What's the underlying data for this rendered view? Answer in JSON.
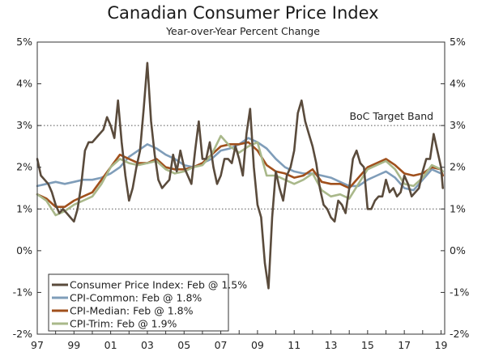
{
  "chart_data": {
    "type": "line",
    "title": "Canadian Consumer Price Index",
    "subtitle": "Year-over-Year Percent Change",
    "xlabel": "",
    "ylabel": "",
    "xlim": [
      1997.0,
      2019.2
    ],
    "ylim": [
      -2,
      5
    ],
    "y_ticks": [
      -2,
      -1,
      0,
      1,
      2,
      3,
      4,
      5
    ],
    "y_tick_labels": [
      "-2%",
      "-1%",
      "0%",
      "1%",
      "2%",
      "3%",
      "4%",
      "5%"
    ],
    "x_ticks": [
      1997,
      1999,
      2001,
      2003,
      2005,
      2007,
      2009,
      2011,
      2013,
      2015,
      2017,
      2019
    ],
    "x_tick_labels": [
      "97",
      "99",
      "01",
      "03",
      "05",
      "07",
      "09",
      "11",
      "13",
      "15",
      "17",
      "19"
    ],
    "grid": "dotted horizontal lines at 1% and 3%",
    "annotation": {
      "text": "BoC Target Band",
      "x": 2016.3,
      "y": 3
    },
    "legend_position": "bottom-left",
    "series": [
      {
        "name": "Consumer Price Index: Feb @ 1.5%",
        "color": "#5a4b3c",
        "x": [
          1997.0,
          1997.2,
          1997.4,
          1997.6,
          1997.8,
          1998.0,
          1998.2,
          1998.4,
          1998.6,
          1998.8,
          1999.0,
          1999.2,
          1999.4,
          1999.6,
          1999.8,
          2000.0,
          2000.2,
          2000.4,
          2000.6,
          2000.8,
          2001.0,
          2001.2,
          2001.4,
          2001.6,
          2001.8,
          2002.0,
          2002.2,
          2002.4,
          2002.6,
          2002.8,
          2003.0,
          2003.2,
          2003.4,
          2003.6,
          2003.8,
          2004.0,
          2004.2,
          2004.4,
          2004.6,
          2004.8,
          2005.0,
          2005.2,
          2005.4,
          2005.6,
          2005.8,
          2006.0,
          2006.2,
          2006.4,
          2006.6,
          2006.8,
          2007.0,
          2007.2,
          2007.4,
          2007.6,
          2007.8,
          2008.0,
          2008.2,
          2008.4,
          2008.6,
          2008.8,
          2009.0,
          2009.2,
          2009.4,
          2009.6,
          2009.8,
          2010.0,
          2010.2,
          2010.4,
          2010.6,
          2010.8,
          2011.0,
          2011.2,
          2011.4,
          2011.6,
          2011.8,
          2012.0,
          2012.2,
          2012.4,
          2012.6,
          2012.8,
          2013.0,
          2013.2,
          2013.4,
          2013.6,
          2013.8,
          2014.0,
          2014.2,
          2014.4,
          2014.6,
          2014.8,
          2015.0,
          2015.2,
          2015.4,
          2015.6,
          2015.8,
          2016.0,
          2016.2,
          2016.4,
          2016.6,
          2016.8,
          2017.0,
          2017.2,
          2017.4,
          2017.6,
          2017.8,
          2018.0,
          2018.2,
          2018.4,
          2018.6,
          2018.8,
          2019.0,
          2019.1
        ],
        "values": [
          2.2,
          1.8,
          1.7,
          1.6,
          1.4,
          1.1,
          0.9,
          1.0,
          0.9,
          0.8,
          0.7,
          1.0,
          1.6,
          2.4,
          2.6,
          2.6,
          2.7,
          2.8,
          2.9,
          3.2,
          3.0,
          2.7,
          3.6,
          2.6,
          1.8,
          1.2,
          1.5,
          2.0,
          2.4,
          3.4,
          4.5,
          3.1,
          2.3,
          1.7,
          1.5,
          1.6,
          1.7,
          2.3,
          1.9,
          2.4,
          2.0,
          1.8,
          1.6,
          2.4,
          3.1,
          2.2,
          2.2,
          2.6,
          2.0,
          1.6,
          1.8,
          2.2,
          2.2,
          2.1,
          2.5,
          2.2,
          1.8,
          2.8,
          3.4,
          2.0,
          1.1,
          0.8,
          -0.3,
          -0.9,
          0.8,
          1.9,
          1.5,
          1.2,
          1.8,
          2.0,
          2.4,
          3.3,
          3.6,
          3.1,
          2.8,
          2.5,
          2.1,
          1.5,
          1.1,
          1.0,
          0.8,
          0.7,
          1.2,
          1.1,
          0.9,
          1.5,
          2.2,
          2.4,
          2.1,
          2.0,
          1.0,
          1.0,
          1.2,
          1.3,
          1.3,
          1.7,
          1.4,
          1.5,
          1.3,
          1.4,
          1.8,
          1.6,
          1.3,
          1.4,
          1.5,
          1.9,
          2.2,
          2.2,
          2.8,
          2.4,
          2.0,
          1.5
        ]
      },
      {
        "name": "CPI-Common: Feb @ 1.8%",
        "color": "#7f9db9",
        "x": [
          1997.0,
          1997.5,
          1998.0,
          1998.5,
          1999.0,
          1999.5,
          2000.0,
          2000.5,
          2001.0,
          2001.5,
          2002.0,
          2002.5,
          2003.0,
          2003.5,
          2004.0,
          2004.5,
          2005.0,
          2005.5,
          2006.0,
          2006.5,
          2007.0,
          2007.5,
          2008.0,
          2008.5,
          2009.0,
          2009.5,
          2010.0,
          2010.5,
          2011.0,
          2011.5,
          2012.0,
          2012.5,
          2013.0,
          2013.5,
          2014.0,
          2014.5,
          2015.0,
          2015.5,
          2016.0,
          2016.5,
          2017.0,
          2017.5,
          2018.0,
          2018.5,
          2019.0,
          2019.1
        ],
        "values": [
          1.55,
          1.6,
          1.65,
          1.6,
          1.65,
          1.7,
          1.7,
          1.75,
          1.85,
          2.0,
          2.25,
          2.4,
          2.55,
          2.45,
          2.3,
          2.2,
          2.05,
          2.0,
          2.1,
          2.2,
          2.4,
          2.45,
          2.55,
          2.7,
          2.6,
          2.45,
          2.2,
          2.0,
          1.9,
          1.85,
          1.85,
          1.8,
          1.75,
          1.65,
          1.55,
          1.55,
          1.7,
          1.8,
          1.9,
          1.75,
          1.5,
          1.45,
          1.7,
          1.95,
          1.85,
          1.8
        ]
      },
      {
        "name": "CPI-Median: Feb @ 1.8%",
        "color": "#a0501c",
        "x": [
          1997.0,
          1997.5,
          1998.0,
          1998.5,
          1999.0,
          1999.5,
          2000.0,
          2000.5,
          2001.0,
          2001.5,
          2002.0,
          2002.5,
          2003.0,
          2003.5,
          2004.0,
          2004.5,
          2005.0,
          2005.5,
          2006.0,
          2006.5,
          2007.0,
          2007.5,
          2008.0,
          2008.5,
          2009.0,
          2009.5,
          2010.0,
          2010.5,
          2011.0,
          2011.5,
          2012.0,
          2012.5,
          2013.0,
          2013.5,
          2014.0,
          2014.5,
          2015.0,
          2015.5,
          2016.0,
          2016.5,
          2017.0,
          2017.5,
          2018.0,
          2018.5,
          2019.0,
          2019.1
        ],
        "values": [
          1.35,
          1.25,
          1.05,
          1.05,
          1.2,
          1.3,
          1.4,
          1.7,
          2.0,
          2.3,
          2.2,
          2.1,
          2.1,
          2.2,
          2.0,
          1.95,
          1.95,
          2.0,
          2.1,
          2.3,
          2.5,
          2.55,
          2.55,
          2.6,
          2.4,
          2.05,
          1.9,
          1.85,
          1.75,
          1.8,
          1.95,
          1.65,
          1.6,
          1.6,
          1.5,
          1.75,
          2.0,
          2.1,
          2.2,
          2.05,
          1.85,
          1.8,
          1.85,
          2.0,
          1.95,
          1.8
        ]
      },
      {
        "name": "CPI-Trim: Feb @ 1.9%",
        "color": "#a9b88a",
        "x": [
          1997.0,
          1997.5,
          1998.0,
          1998.5,
          1999.0,
          1999.5,
          2000.0,
          2000.5,
          2001.0,
          2001.5,
          2002.0,
          2002.5,
          2003.0,
          2003.5,
          2004.0,
          2004.5,
          2005.0,
          2005.5,
          2006.0,
          2006.5,
          2007.0,
          2007.5,
          2008.0,
          2008.5,
          2009.0,
          2009.5,
          2010.0,
          2010.5,
          2011.0,
          2011.5,
          2012.0,
          2012.5,
          2013.0,
          2013.5,
          2014.0,
          2014.5,
          2015.0,
          2015.5,
          2016.0,
          2016.5,
          2017.0,
          2017.5,
          2018.0,
          2018.5,
          2019.0,
          2019.1
        ],
        "values": [
          1.35,
          1.2,
          0.85,
          0.95,
          1.1,
          1.2,
          1.3,
          1.6,
          2.0,
          2.2,
          2.1,
          2.05,
          2.1,
          2.15,
          1.95,
          1.85,
          1.9,
          2.0,
          2.05,
          2.3,
          2.75,
          2.5,
          2.35,
          2.5,
          2.6,
          1.8,
          1.8,
          1.7,
          1.6,
          1.7,
          1.85,
          1.45,
          1.3,
          1.35,
          1.25,
          1.6,
          1.95,
          2.05,
          2.15,
          1.95,
          1.6,
          1.55,
          1.75,
          2.05,
          1.95,
          1.9
        ]
      }
    ]
  }
}
